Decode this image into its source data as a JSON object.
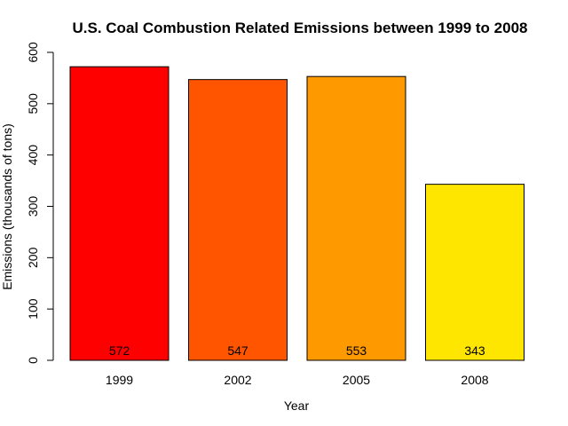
{
  "chart_data": {
    "type": "bar",
    "title": "U.S. Coal Combustion Related Emissions between 1999 to 2008",
    "xlabel": "Year",
    "ylabel": "Emissions (thousands of tons)",
    "categories": [
      "1999",
      "2002",
      "2005",
      "2008"
    ],
    "values": [
      572,
      547,
      553,
      343
    ],
    "value_labels": [
      "572",
      "547",
      "553",
      "343"
    ],
    "colors": [
      "#FF0000",
      "#FF5500",
      "#FF9900",
      "#FFE600"
    ],
    "ylim": [
      0,
      600
    ],
    "yticks": [
      0,
      100,
      200,
      300,
      400,
      500,
      600
    ],
    "grid": false,
    "legend": "none"
  }
}
